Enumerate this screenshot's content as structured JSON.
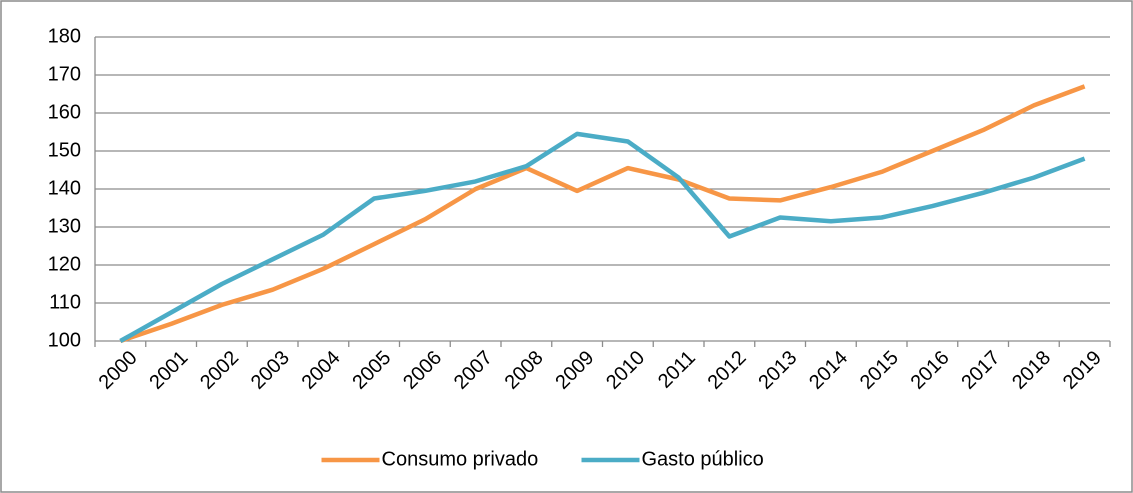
{
  "chart_data": {
    "type": "line",
    "categories": [
      "2000",
      "2001",
      "2002",
      "2003",
      "2004",
      "2005",
      "2006",
      "2007",
      "2008",
      "2009",
      "2010",
      "2011",
      "2012",
      "2013",
      "2014",
      "2015",
      "2016",
      "2017",
      "2018",
      "2019"
    ],
    "series": [
      {
        "name": "Consumo privado",
        "color": "#f79646",
        "values": [
          100,
          104.5,
          109.5,
          113.5,
          119,
          125.5,
          132,
          140,
          145.5,
          139.5,
          145.5,
          142.5,
          137.5,
          137,
          140.5,
          144.5,
          150,
          155.5,
          162,
          167
        ]
      },
      {
        "name": "Gasto público",
        "color": "#4bacc6",
        "values": [
          100,
          107.5,
          115,
          121.5,
          128,
          137.5,
          139.5,
          142,
          146,
          154.5,
          152.5,
          143,
          127.5,
          132.5,
          131.5,
          132.5,
          135.5,
          139,
          143,
          148
        ]
      }
    ],
    "ylim": [
      100,
      180
    ],
    "yticks": [
      100,
      110,
      120,
      130,
      140,
      150,
      160,
      170,
      180
    ],
    "grid": true,
    "legend": "bottom"
  }
}
